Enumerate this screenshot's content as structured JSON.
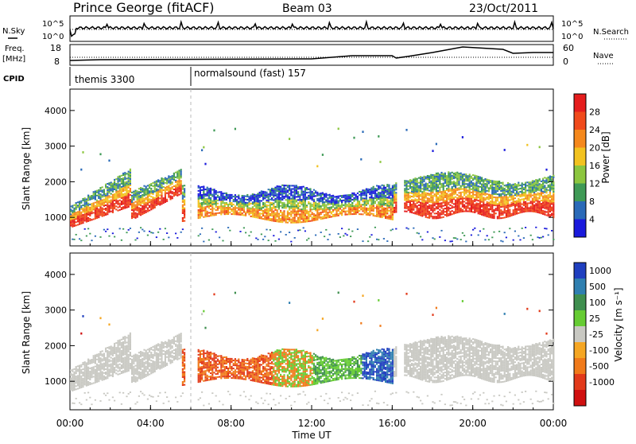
{
  "header": {
    "station": "Prince George (fitACF)",
    "beam": "Beam 03",
    "date": "23/Oct/2011"
  },
  "status_panels": {
    "nsky_label": "N.Sky",
    "nsearch_label": "N.Search",
    "freq_label_line1": "Freq.",
    "freq_label_line2": "[MHz]",
    "nave_label": "Nave",
    "cpid_label": "CPID",
    "left_ticks_top": [
      "10^5",
      "10^0"
    ],
    "right_ticks_top": [
      "10^5",
      "10^0"
    ],
    "freq_ticks": [
      "18",
      "8"
    ],
    "nave_ticks": [
      "60",
      "0"
    ],
    "cpid_segments": [
      {
        "label": "themis 3300",
        "start_hour": 0
      },
      {
        "label": "normalsound (fast) 157",
        "start_hour": 6
      }
    ]
  },
  "chart_data": [
    {
      "type": "heatmap",
      "name": "power-panel",
      "xlabel": "",
      "ylabel": "Slant Range [km]",
      "ylim": [
        200,
        4600
      ],
      "y_ticks": [
        "1000",
        "2000",
        "3000",
        "4000"
      ],
      "x_range_hours": [
        0,
        24
      ],
      "colorbar_label": "Power [dB]",
      "colorbar_ticks": [
        "28",
        "24",
        "20",
        "16",
        "12",
        "8",
        "4"
      ],
      "colorbar_colors": [
        "#e51d1d",
        "#f04a1b",
        "#f5881c",
        "#f2c21f",
        "#8cc63f",
        "#3f9a56",
        "#2a6ab8",
        "#1a1adc"
      ]
    },
    {
      "type": "heatmap",
      "name": "velocity-panel",
      "xlabel": "Time UT",
      "ylabel": "Slant Range [km]",
      "ylim": [
        200,
        4600
      ],
      "y_ticks": [
        "1000",
        "2000",
        "3000",
        "4000"
      ],
      "x_range_hours": [
        0,
        24
      ],
      "x_ticks": [
        "00:00",
        "04:00",
        "08:00",
        "12:00",
        "16:00",
        "20:00",
        "00:00"
      ],
      "colorbar_label": "Velocity [m s⁻¹]",
      "colorbar_ticks": [
        "1000",
        "500",
        "100",
        "25",
        "-25",
        "-100",
        "-500",
        "-1000"
      ],
      "colorbar_colors": [
        "#1f3fbf",
        "#2f7fb0",
        "#3f8f4f",
        "#66cc33",
        "#c8c8c2",
        "#f5a623",
        "#f07a1a",
        "#e23a1a",
        "#d01010"
      ]
    }
  ]
}
